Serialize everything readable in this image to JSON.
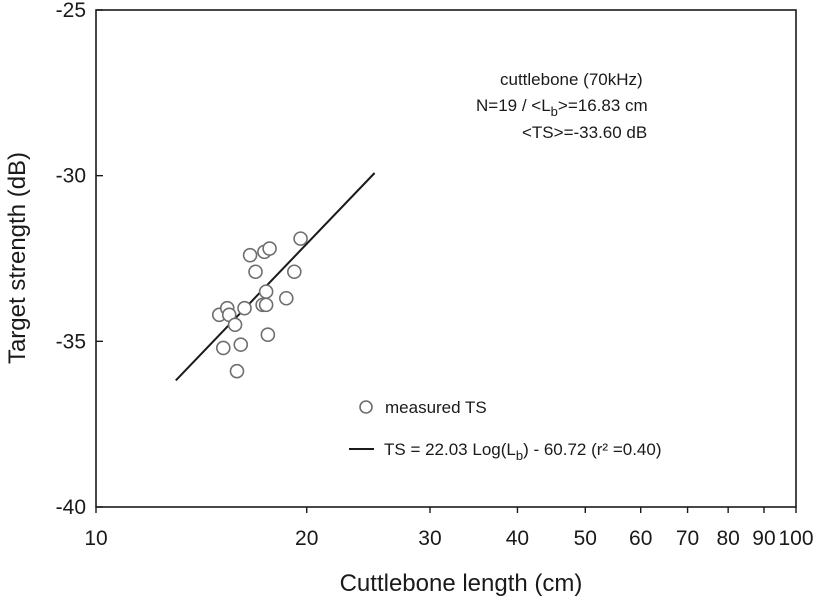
{
  "chart_data": {
    "type": "scatter",
    "xlabel": "Cuttlebone length (cm)",
    "ylabel": "Target strength (dB)",
    "x_scale": "log",
    "xlim": [
      10,
      100
    ],
    "ylim": [
      -40,
      -25
    ],
    "x_ticks": [
      10,
      20,
      30,
      40,
      50,
      60,
      70,
      80,
      90,
      100
    ],
    "x_tick_labels": [
      "10",
      "20",
      "30",
      "40",
      "50",
      "60",
      "70",
      "80",
      "90",
      "100"
    ],
    "y_ticks": [
      -40,
      -35,
      -30,
      -25
    ],
    "y_tick_labels": [
      "-40",
      "-35",
      "-30",
      "-25"
    ],
    "grid": false,
    "annotation": {
      "line1": "cuttlebone (70kHz)",
      "line2_prefix": "N=19 / <L",
      "line2_sub": "b",
      "line2_suffix": ">=16.83 cm",
      "line3": "<TS>=-33.60 dB"
    },
    "legend": {
      "position": "bottom-right",
      "scatter_label": "measured TS",
      "line_label_prefix": "TS = 22.03 Log(L",
      "line_label_sub": "b",
      "line_label_suffix": ") - 60.72 (r² =0.40)"
    },
    "series": [
      {
        "kind": "scatter",
        "marker": "open-circle",
        "x": [
          15.0,
          15.4,
          15.5,
          15.8,
          16.3,
          16.6,
          16.9,
          17.3,
          17.5,
          17.4,
          17.5,
          17.7,
          18.7,
          19.2,
          19.6,
          15.2,
          15.9,
          16.1,
          17.6
        ],
        "y": [
          -34.2,
          -34.0,
          -34.2,
          -34.5,
          -34.0,
          -32.4,
          -32.9,
          -33.9,
          -33.9,
          -32.3,
          -33.5,
          -32.2,
          -33.7,
          -32.9,
          -31.9,
          -35.2,
          -35.9,
          -35.1,
          -34.8
        ]
      },
      {
        "kind": "line",
        "x": [
          13.0,
          25.0
        ],
        "y": [
          -36.18,
          -29.92
        ]
      }
    ]
  }
}
